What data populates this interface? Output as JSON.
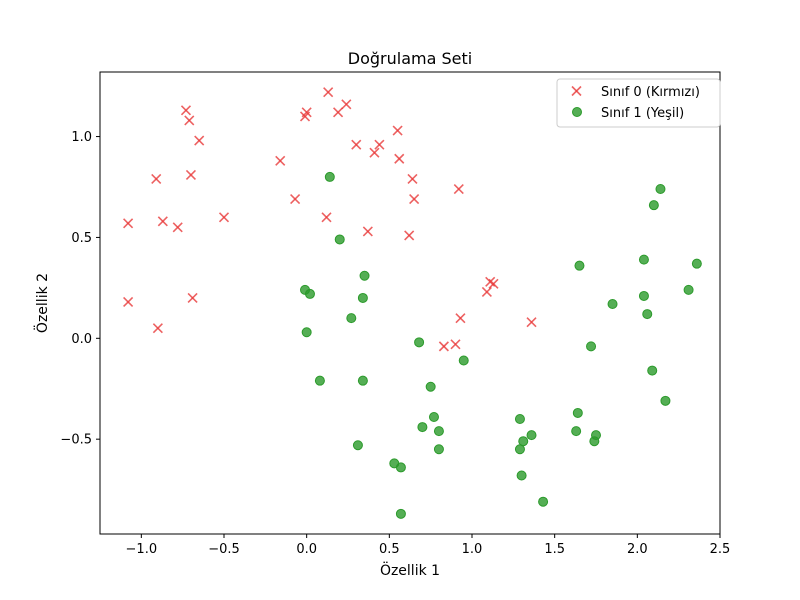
{
  "chart_data": {
    "type": "scatter",
    "title": "Doğrulama Seti",
    "xlabel": "Özellik 1",
    "ylabel": "Özellik 2",
    "xlim": [
      -1.25,
      2.5
    ],
    "ylim": [
      -0.97,
      1.32
    ],
    "xticks": [
      -1.0,
      -0.5,
      0.0,
      0.5,
      1.0,
      1.5,
      2.0,
      2.5
    ],
    "xtick_labels": [
      "−1.0",
      "−0.5",
      "0.0",
      "0.5",
      "1.0",
      "1.5",
      "2.0",
      "2.5"
    ],
    "yticks": [
      -0.5,
      0.0,
      0.5,
      1.0
    ],
    "ytick_labels": [
      "−0.5",
      "0.0",
      "0.5",
      "1.0"
    ],
    "grid": false,
    "legend_position": "top-right",
    "series": [
      {
        "name": "Sınıf 0 (Kırmızı)",
        "marker": "x",
        "color": "#e8393a",
        "points": [
          [
            -1.08,
            0.57
          ],
          [
            -1.08,
            0.18
          ],
          [
            -0.91,
            0.79
          ],
          [
            -0.9,
            0.05
          ],
          [
            -0.87,
            0.58
          ],
          [
            -0.78,
            0.55
          ],
          [
            -0.73,
            1.13
          ],
          [
            -0.71,
            1.08
          ],
          [
            -0.7,
            0.81
          ],
          [
            -0.69,
            0.2
          ],
          [
            -0.65,
            0.98
          ],
          [
            -0.5,
            0.6
          ],
          [
            -0.16,
            0.88
          ],
          [
            -0.07,
            0.69
          ],
          [
            -0.01,
            1.1
          ],
          [
            0.0,
            1.12
          ],
          [
            0.12,
            0.6
          ],
          [
            0.13,
            1.22
          ],
          [
            0.19,
            1.12
          ],
          [
            0.24,
            1.16
          ],
          [
            0.3,
            0.96
          ],
          [
            0.37,
            0.53
          ],
          [
            0.41,
            0.92
          ],
          [
            0.44,
            0.96
          ],
          [
            0.55,
            1.03
          ],
          [
            0.56,
            0.89
          ],
          [
            0.62,
            0.51
          ],
          [
            0.64,
            0.79
          ],
          [
            0.65,
            0.69
          ],
          [
            0.83,
            -0.04
          ],
          [
            0.9,
            -0.03
          ],
          [
            0.92,
            0.74
          ],
          [
            0.93,
            0.1
          ],
          [
            1.09,
            0.23
          ],
          [
            1.11,
            0.28
          ],
          [
            1.13,
            0.27
          ],
          [
            1.36,
            0.08
          ]
        ]
      },
      {
        "name": "Sınıf 1 (Yeşil)",
        "marker": "o",
        "color": "#2b9a2b",
        "points": [
          [
            -0.01,
            0.24
          ],
          [
            0.0,
            0.03
          ],
          [
            0.02,
            0.22
          ],
          [
            0.08,
            -0.21
          ],
          [
            0.14,
            0.8
          ],
          [
            0.2,
            0.49
          ],
          [
            0.27,
            0.1
          ],
          [
            0.31,
            -0.53
          ],
          [
            0.34,
            0.2
          ],
          [
            0.34,
            -0.21
          ],
          [
            0.35,
            0.31
          ],
          [
            0.53,
            -0.62
          ],
          [
            0.57,
            -0.64
          ],
          [
            0.57,
            -0.87
          ],
          [
            0.68,
            -0.02
          ],
          [
            0.7,
            -0.44
          ],
          [
            0.75,
            -0.24
          ],
          [
            0.77,
            -0.39
          ],
          [
            0.8,
            -0.46
          ],
          [
            0.8,
            -0.55
          ],
          [
            0.95,
            -0.11
          ],
          [
            1.29,
            -0.4
          ],
          [
            1.29,
            -0.55
          ],
          [
            1.3,
            -0.68
          ],
          [
            1.31,
            -0.51
          ],
          [
            1.36,
            -0.48
          ],
          [
            1.43,
            -0.81
          ],
          [
            1.63,
            -0.46
          ],
          [
            1.64,
            -0.37
          ],
          [
            1.65,
            0.36
          ],
          [
            1.72,
            -0.04
          ],
          [
            1.74,
            -0.51
          ],
          [
            1.75,
            -0.48
          ],
          [
            1.85,
            0.17
          ],
          [
            2.04,
            0.21
          ],
          [
            2.04,
            0.39
          ],
          [
            2.06,
            0.12
          ],
          [
            2.09,
            -0.16
          ],
          [
            2.1,
            0.66
          ],
          [
            2.14,
            0.74
          ],
          [
            2.17,
            -0.31
          ],
          [
            2.31,
            0.24
          ],
          [
            2.36,
            0.37
          ]
        ]
      }
    ]
  }
}
